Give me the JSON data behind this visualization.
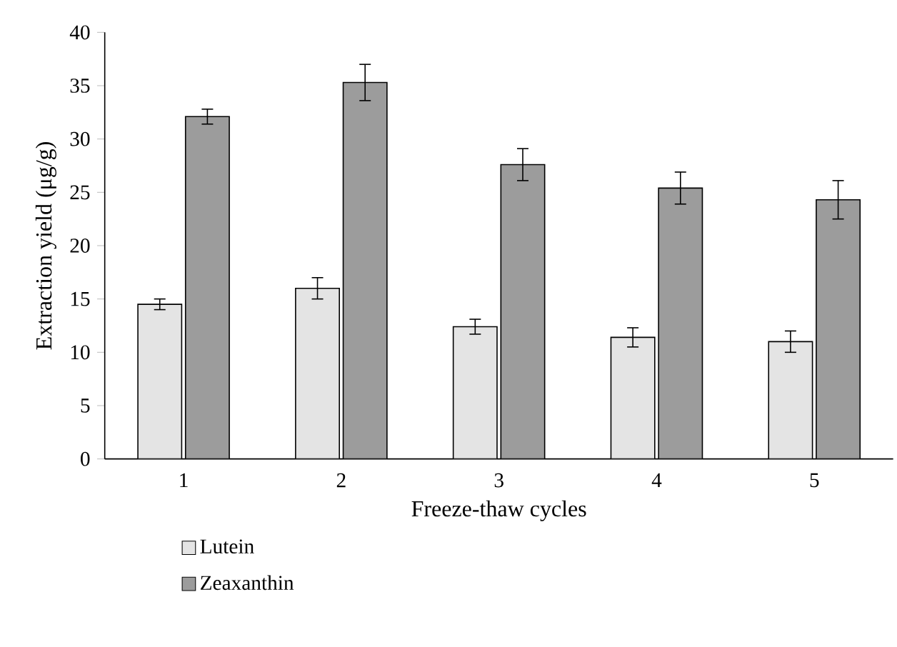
{
  "chart_data": {
    "type": "bar",
    "xlabel": "Freeze-thaw cycles",
    "ylabel": "Extraction yield (μg/g)",
    "categories": [
      "1",
      "2",
      "3",
      "4",
      "5"
    ],
    "series": [
      {
        "name": "Lutein",
        "color": "#e4e4e4",
        "values": [
          14.5,
          16.0,
          12.4,
          11.4,
          11.0
        ],
        "errors": [
          0.5,
          1.0,
          0.7,
          0.9,
          1.0
        ]
      },
      {
        "name": "Zeaxanthin",
        "color": "#9c9c9c",
        "values": [
          32.1,
          35.3,
          27.6,
          25.4,
          24.3
        ],
        "errors": [
          0.7,
          1.7,
          1.5,
          1.5,
          1.8
        ]
      }
    ],
    "ylim": [
      0,
      40
    ],
    "yticks": [
      0,
      5,
      10,
      15,
      20,
      25,
      30,
      35,
      40
    ],
    "legend": "bottom",
    "grid": false
  }
}
